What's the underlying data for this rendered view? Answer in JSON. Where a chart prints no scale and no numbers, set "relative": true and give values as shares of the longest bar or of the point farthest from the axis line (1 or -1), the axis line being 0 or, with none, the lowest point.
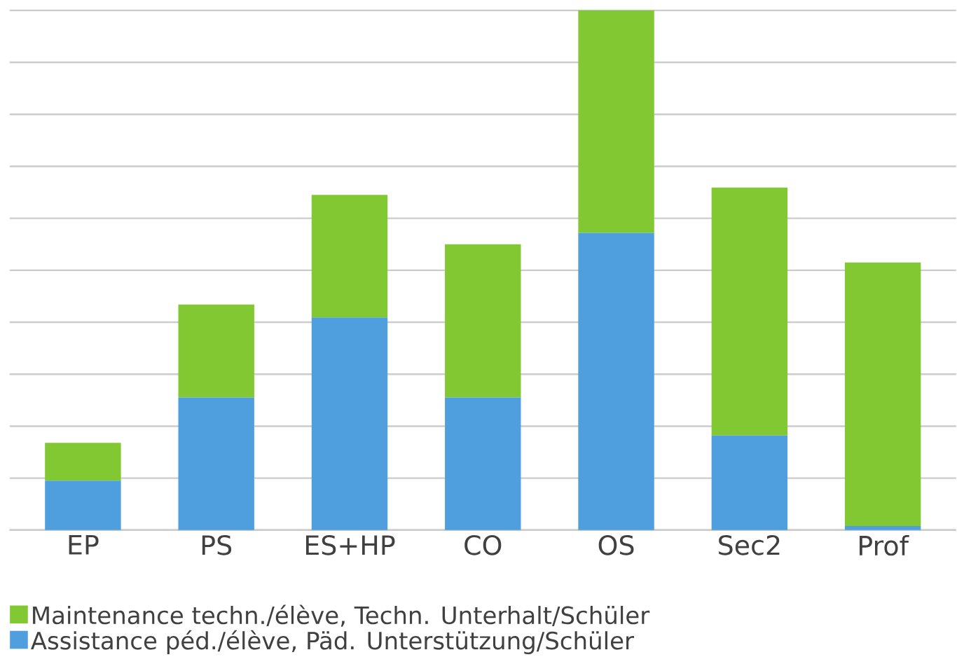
{
  "chart_data": {
    "type": "bar",
    "stacked": true,
    "relative": true,
    "grid": "y",
    "legend": "bottom",
    "categories": [
      "EP",
      "PS",
      "ES+HP",
      "CO",
      "OS",
      "Sec2",
      "Prof"
    ],
    "series": [
      {
        "name": "Assistance péd./élève, Päd. Unterstützung/Schüler",
        "color": "#4f9fdf",
        "values": [
          0.095,
          0.255,
          0.409,
          0.255,
          0.572,
          0.182,
          0.008
        ]
      },
      {
        "name": "Maintenance techn./élève, Techn. Unterhalt/Schüler",
        "color": "#82c832",
        "values": [
          0.073,
          0.179,
          0.236,
          0.295,
          0.428,
          0.477,
          0.507
        ]
      }
    ]
  }
}
